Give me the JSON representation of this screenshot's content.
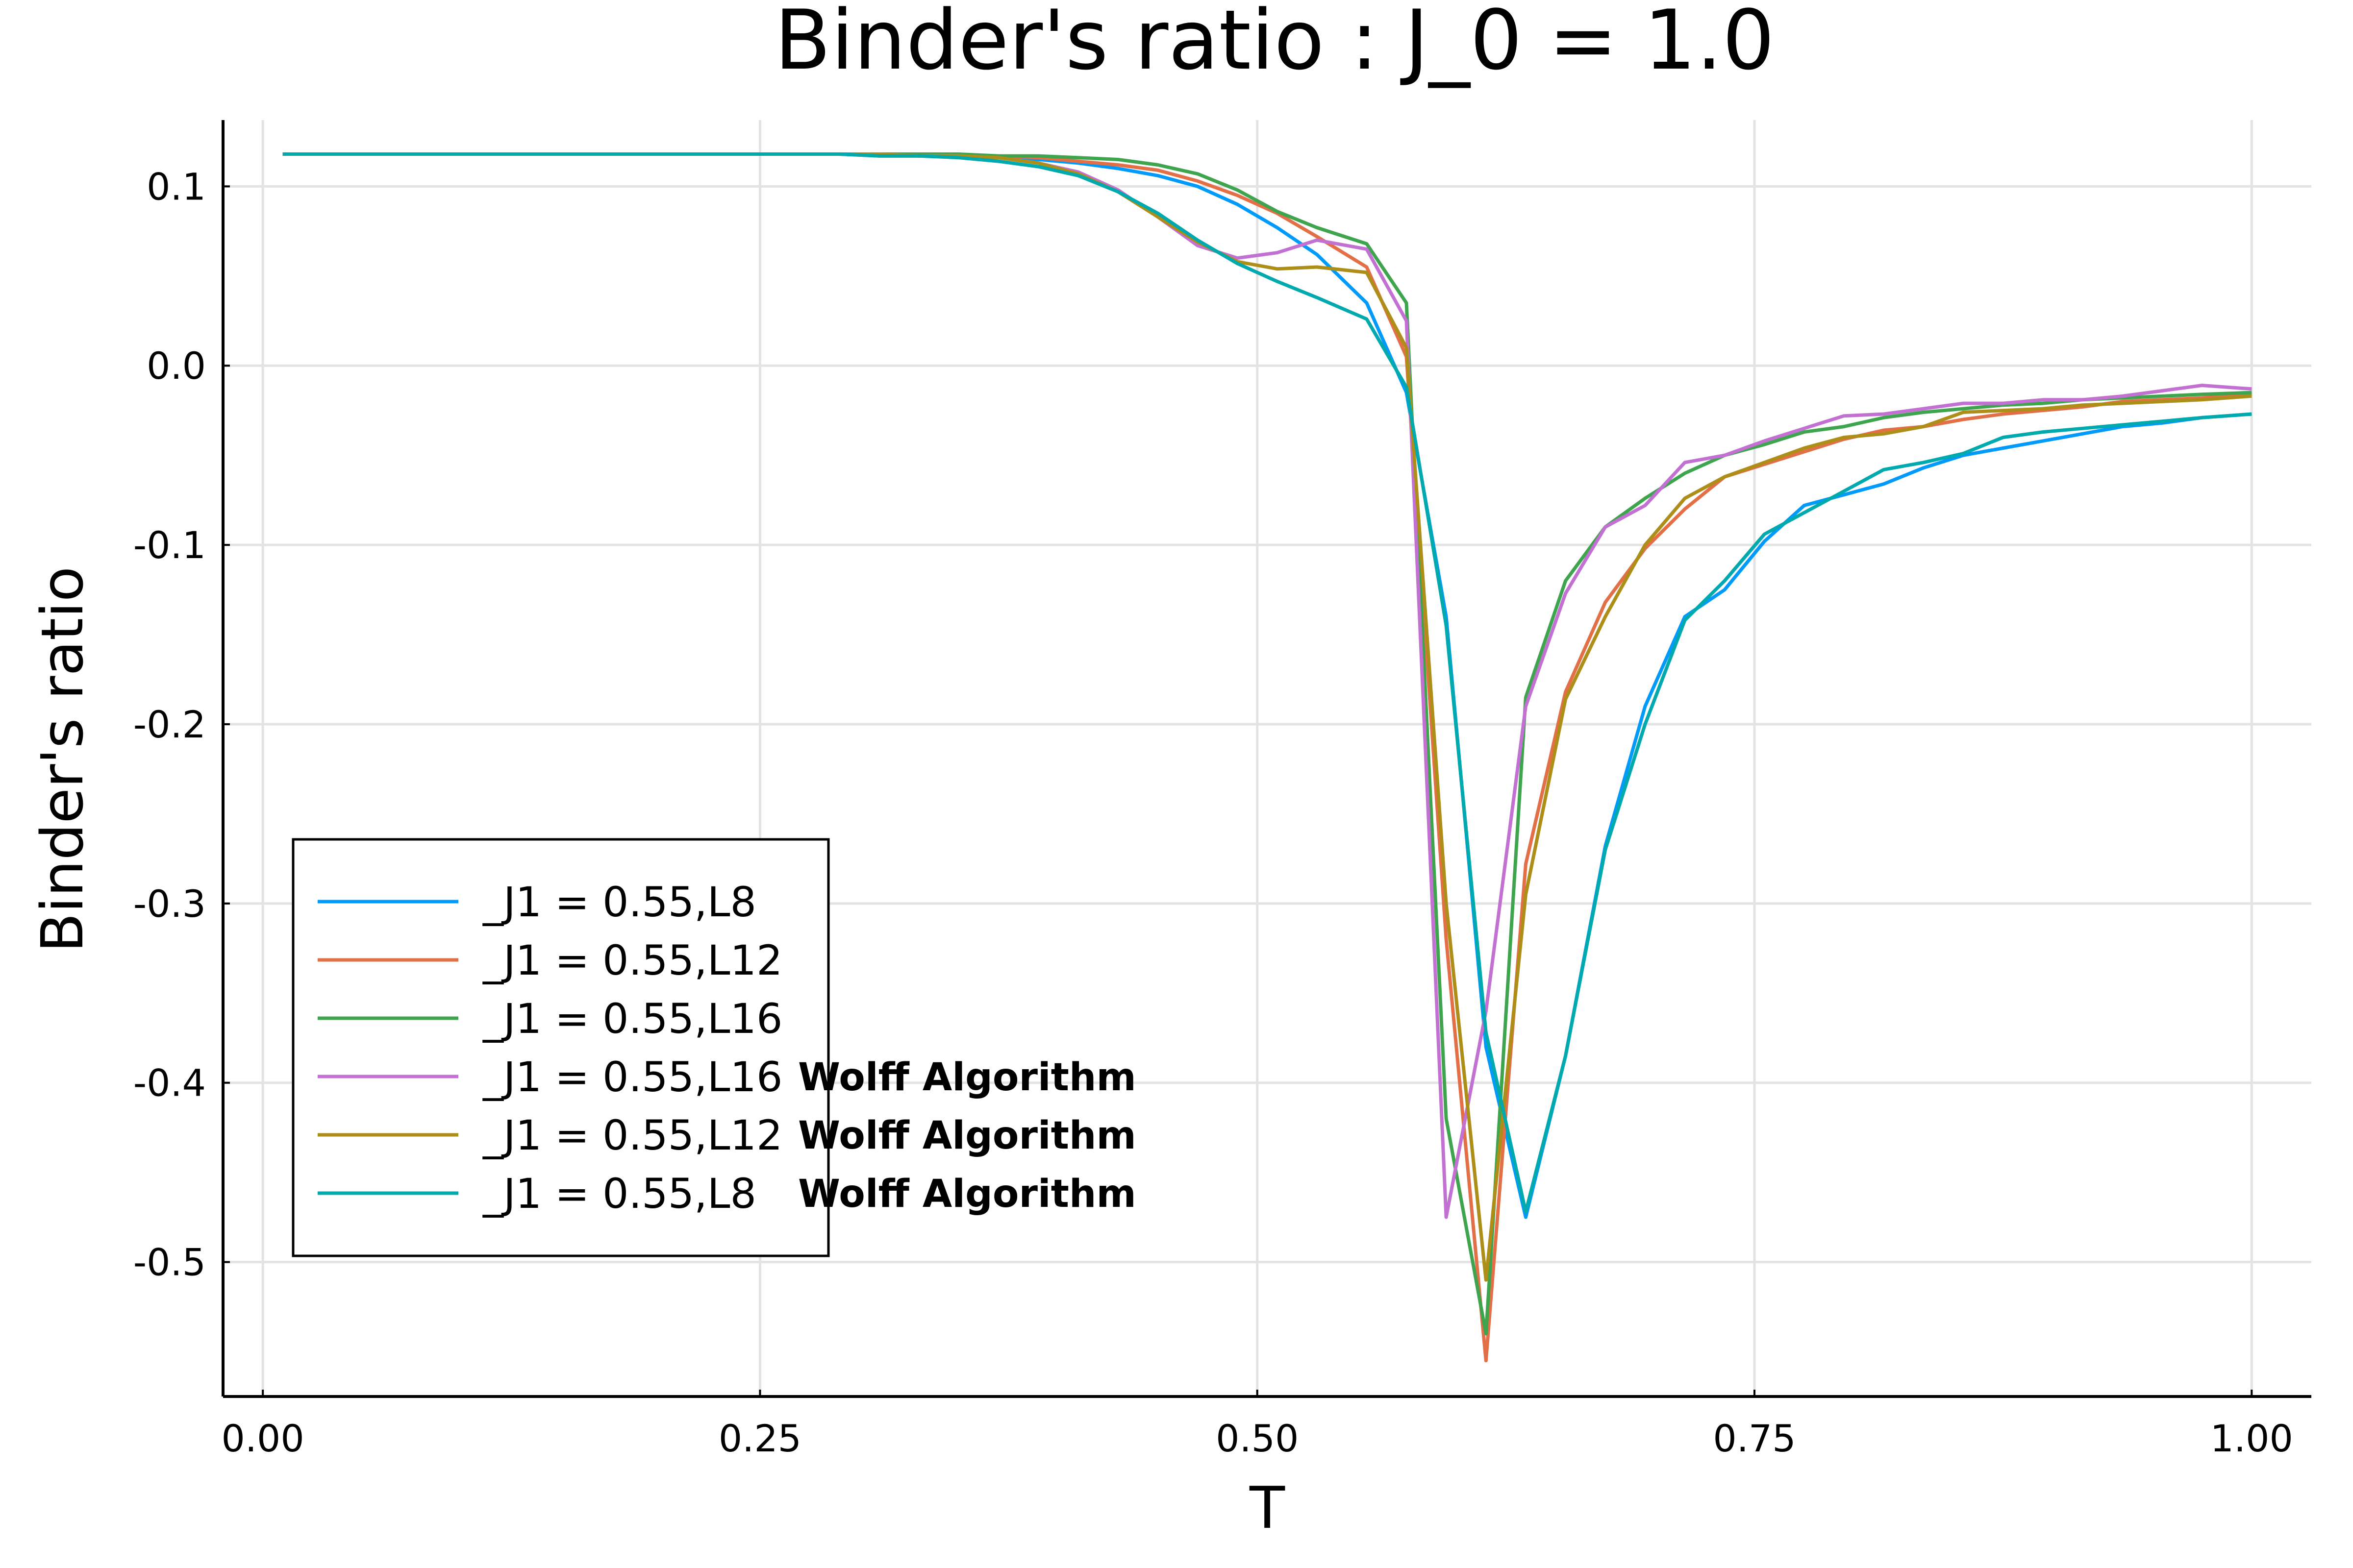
{
  "chart_data": {
    "type": "line",
    "title": "Binder's ratio : J_0 = 1.0",
    "xlabel": "T",
    "ylabel": "Binder's ratio",
    "xlim": [
      -0.02,
      1.03
    ],
    "ylim": [
      -0.575,
      0.137
    ],
    "x_ticks": [
      0.0,
      0.25,
      0.5,
      0.75,
      1.0
    ],
    "x_tick_labels": [
      "0.00",
      "0.25",
      "0.50",
      "0.75",
      "1.00"
    ],
    "y_ticks": [
      0.1,
      0.0,
      -0.1,
      -0.2,
      -0.3,
      -0.4,
      -0.5
    ],
    "y_tick_labels": [
      "0.1",
      "0.0",
      "-0.1",
      "-0.2",
      "-0.3",
      "-0.4",
      "-0.5"
    ],
    "grid": true,
    "legend_position": "bottom-left",
    "x": [
      0.01,
      0.03,
      0.05,
      0.07,
      0.09,
      0.11,
      0.13,
      0.15,
      0.17,
      0.19,
      0.21,
      0.23,
      0.25,
      0.27,
      0.29,
      0.31,
      0.33,
      0.35,
      0.37,
      0.39,
      0.41,
      0.43,
      0.45,
      0.47,
      0.49,
      0.51,
      0.53,
      0.555,
      0.575,
      0.595,
      0.615,
      0.635,
      0.655,
      0.675,
      0.695,
      0.715,
      0.735,
      0.755,
      0.775,
      0.795,
      0.815,
      0.835,
      0.855,
      0.875,
      0.895,
      0.915,
      0.935,
      0.955,
      0.975,
      1.0
    ],
    "series": [
      {
        "name": "_J1 = 0.55,L8",
        "color": "#009AFA",
        "values": [
          0.118,
          0.118,
          0.118,
          0.118,
          0.118,
          0.118,
          0.118,
          0.118,
          0.118,
          0.118,
          0.118,
          0.118,
          0.118,
          0.118,
          0.118,
          0.117,
          0.117,
          0.117,
          0.116,
          0.115,
          0.113,
          0.11,
          0.106,
          0.1,
          0.09,
          0.077,
          0.062,
          0.035,
          -0.015,
          -0.14,
          -0.38,
          -0.475,
          -0.385,
          -0.268,
          -0.19,
          -0.14,
          -0.125,
          -0.098,
          -0.078,
          -0.072,
          -0.066,
          -0.057,
          -0.05,
          -0.046,
          -0.042,
          -0.038,
          -0.034,
          -0.032,
          -0.029,
          -0.027
        ]
      },
      {
        "name": "_J1 = 0.55,L12",
        "color": "#E36F47",
        "values": [
          0.118,
          0.118,
          0.118,
          0.118,
          0.118,
          0.118,
          0.118,
          0.118,
          0.118,
          0.118,
          0.118,
          0.118,
          0.118,
          0.118,
          0.118,
          0.118,
          0.117,
          0.117,
          0.117,
          0.116,
          0.114,
          0.112,
          0.109,
          0.103,
          0.095,
          0.085,
          0.072,
          0.055,
          0.005,
          -0.32,
          -0.555,
          -0.278,
          -0.182,
          -0.132,
          -0.102,
          -0.08,
          -0.062,
          -0.055,
          -0.048,
          -0.041,
          -0.036,
          -0.034,
          -0.03,
          -0.027,
          -0.025,
          -0.023,
          -0.02,
          -0.019,
          -0.018,
          -0.016
        ]
      },
      {
        "name": "_J1 = 0.55,L16",
        "color": "#3EA44E",
        "values": [
          0.118,
          0.118,
          0.118,
          0.118,
          0.118,
          0.118,
          0.118,
          0.118,
          0.118,
          0.118,
          0.118,
          0.118,
          0.118,
          0.118,
          0.118,
          0.118,
          0.118,
          0.118,
          0.117,
          0.117,
          0.116,
          0.115,
          0.112,
          0.107,
          0.098,
          0.086,
          0.077,
          0.068,
          0.035,
          -0.42,
          -0.54,
          -0.185,
          -0.12,
          -0.09,
          -0.074,
          -0.06,
          -0.05,
          -0.044,
          -0.037,
          -0.034,
          -0.029,
          -0.026,
          -0.024,
          -0.022,
          -0.021,
          -0.019,
          -0.018,
          -0.017,
          -0.016,
          -0.015
        ]
      },
      {
        "name": "_J1 = 0.55,L16",
        "note": "Wolff Algorithm",
        "color": "#C271D2",
        "values": [
          0.118,
          0.118,
          0.118,
          0.118,
          0.118,
          0.118,
          0.118,
          0.118,
          0.118,
          0.118,
          0.118,
          0.118,
          0.118,
          0.118,
          0.118,
          0.118,
          0.117,
          0.117,
          0.116,
          0.113,
          0.108,
          0.098,
          0.083,
          0.067,
          0.06,
          0.063,
          0.07,
          0.065,
          0.025,
          -0.475,
          -0.36,
          -0.19,
          -0.127,
          -0.09,
          -0.078,
          -0.054,
          -0.05,
          -0.042,
          -0.035,
          -0.028,
          -0.027,
          -0.024,
          -0.021,
          -0.021,
          -0.019,
          -0.019,
          -0.017,
          -0.014,
          -0.011,
          -0.013
        ]
      },
      {
        "name": "_J1 = 0.55,L12",
        "note": "Wolff Algorithm",
        "color": "#AC8E18",
        "values": [
          0.118,
          0.118,
          0.118,
          0.118,
          0.118,
          0.118,
          0.118,
          0.118,
          0.118,
          0.118,
          0.118,
          0.118,
          0.118,
          0.118,
          0.118,
          0.118,
          0.117,
          0.117,
          0.116,
          0.113,
          0.107,
          0.097,
          0.083,
          0.069,
          0.058,
          0.054,
          0.055,
          0.052,
          0.01,
          -0.3,
          -0.51,
          -0.295,
          -0.186,
          -0.14,
          -0.1,
          -0.074,
          -0.062,
          -0.054,
          -0.046,
          -0.04,
          -0.038,
          -0.034,
          -0.026,
          -0.025,
          -0.024,
          -0.022,
          -0.021,
          -0.02,
          -0.019,
          -0.017
        ]
      },
      {
        "name": "_J1 = 0.55,L8",
        "note": "Wolff Algorithm",
        "color": "#00A9AD",
        "values": [
          0.118,
          0.118,
          0.118,
          0.118,
          0.118,
          0.118,
          0.118,
          0.118,
          0.118,
          0.118,
          0.118,
          0.118,
          0.118,
          0.118,
          0.118,
          0.117,
          0.117,
          0.116,
          0.114,
          0.111,
          0.106,
          0.097,
          0.085,
          0.07,
          0.057,
          0.047,
          0.038,
          0.026,
          -0.012,
          -0.145,
          -0.372,
          -0.472,
          -0.385,
          -0.27,
          -0.2,
          -0.142,
          -0.12,
          -0.094,
          -0.082,
          -0.07,
          -0.058,
          -0.054,
          -0.049,
          -0.04,
          -0.037,
          -0.035,
          -0.033,
          -0.031,
          -0.029,
          -0.027
        ]
      }
    ]
  }
}
